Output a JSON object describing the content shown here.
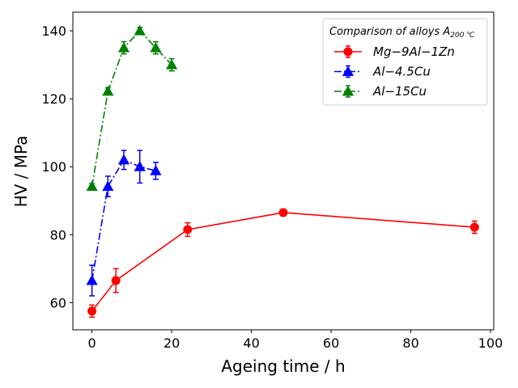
{
  "chart_data": {
    "type": "line",
    "xlabel": "Ageing time / h",
    "ylabel": "HV / MPa",
    "xlim": [
      -4.8,
      100.8
    ],
    "ylim": [
      52,
      145.5
    ],
    "xticks": [
      0,
      20,
      40,
      60,
      80,
      100
    ],
    "yticks": [
      60,
      80,
      100,
      120,
      140
    ],
    "grid": false,
    "legend": {
      "title_main": "Comparison of alloys A",
      "title_sub": "200 ℃",
      "placement": "top-right"
    },
    "series": [
      {
        "name": "Mg−9Al−1Zn",
        "color": "#ff0000",
        "line_style": "solid",
        "marker": "circle",
        "x": [
          0,
          6,
          24,
          48,
          96
        ],
        "y": [
          57.5,
          66.5,
          81.5,
          86.5,
          82.2
        ],
        "yerr": [
          1.8,
          3.5,
          2.0,
          1.0,
          1.8
        ]
      },
      {
        "name": "Al−4.5Cu",
        "color": "#0000ff",
        "line_style": "dashdot",
        "marker": "triangle",
        "x": [
          0,
          4,
          8,
          12,
          16
        ],
        "y": [
          66.5,
          94.2,
          102.0,
          100.0,
          98.8
        ],
        "yerr": [
          4.5,
          3.0,
          2.8,
          4.8,
          2.5
        ]
      },
      {
        "name": "Al−15Cu",
        "color": "#008000",
        "line_style": "dashdot",
        "marker": "triangle",
        "x": [
          0,
          4,
          8,
          12,
          16,
          20
        ],
        "y": [
          94.2,
          122.2,
          135.0,
          140.0,
          135.0,
          130.0
        ],
        "yerr": [
          0.8,
          1.0,
          1.8,
          1.0,
          1.8,
          1.8
        ]
      }
    ]
  }
}
